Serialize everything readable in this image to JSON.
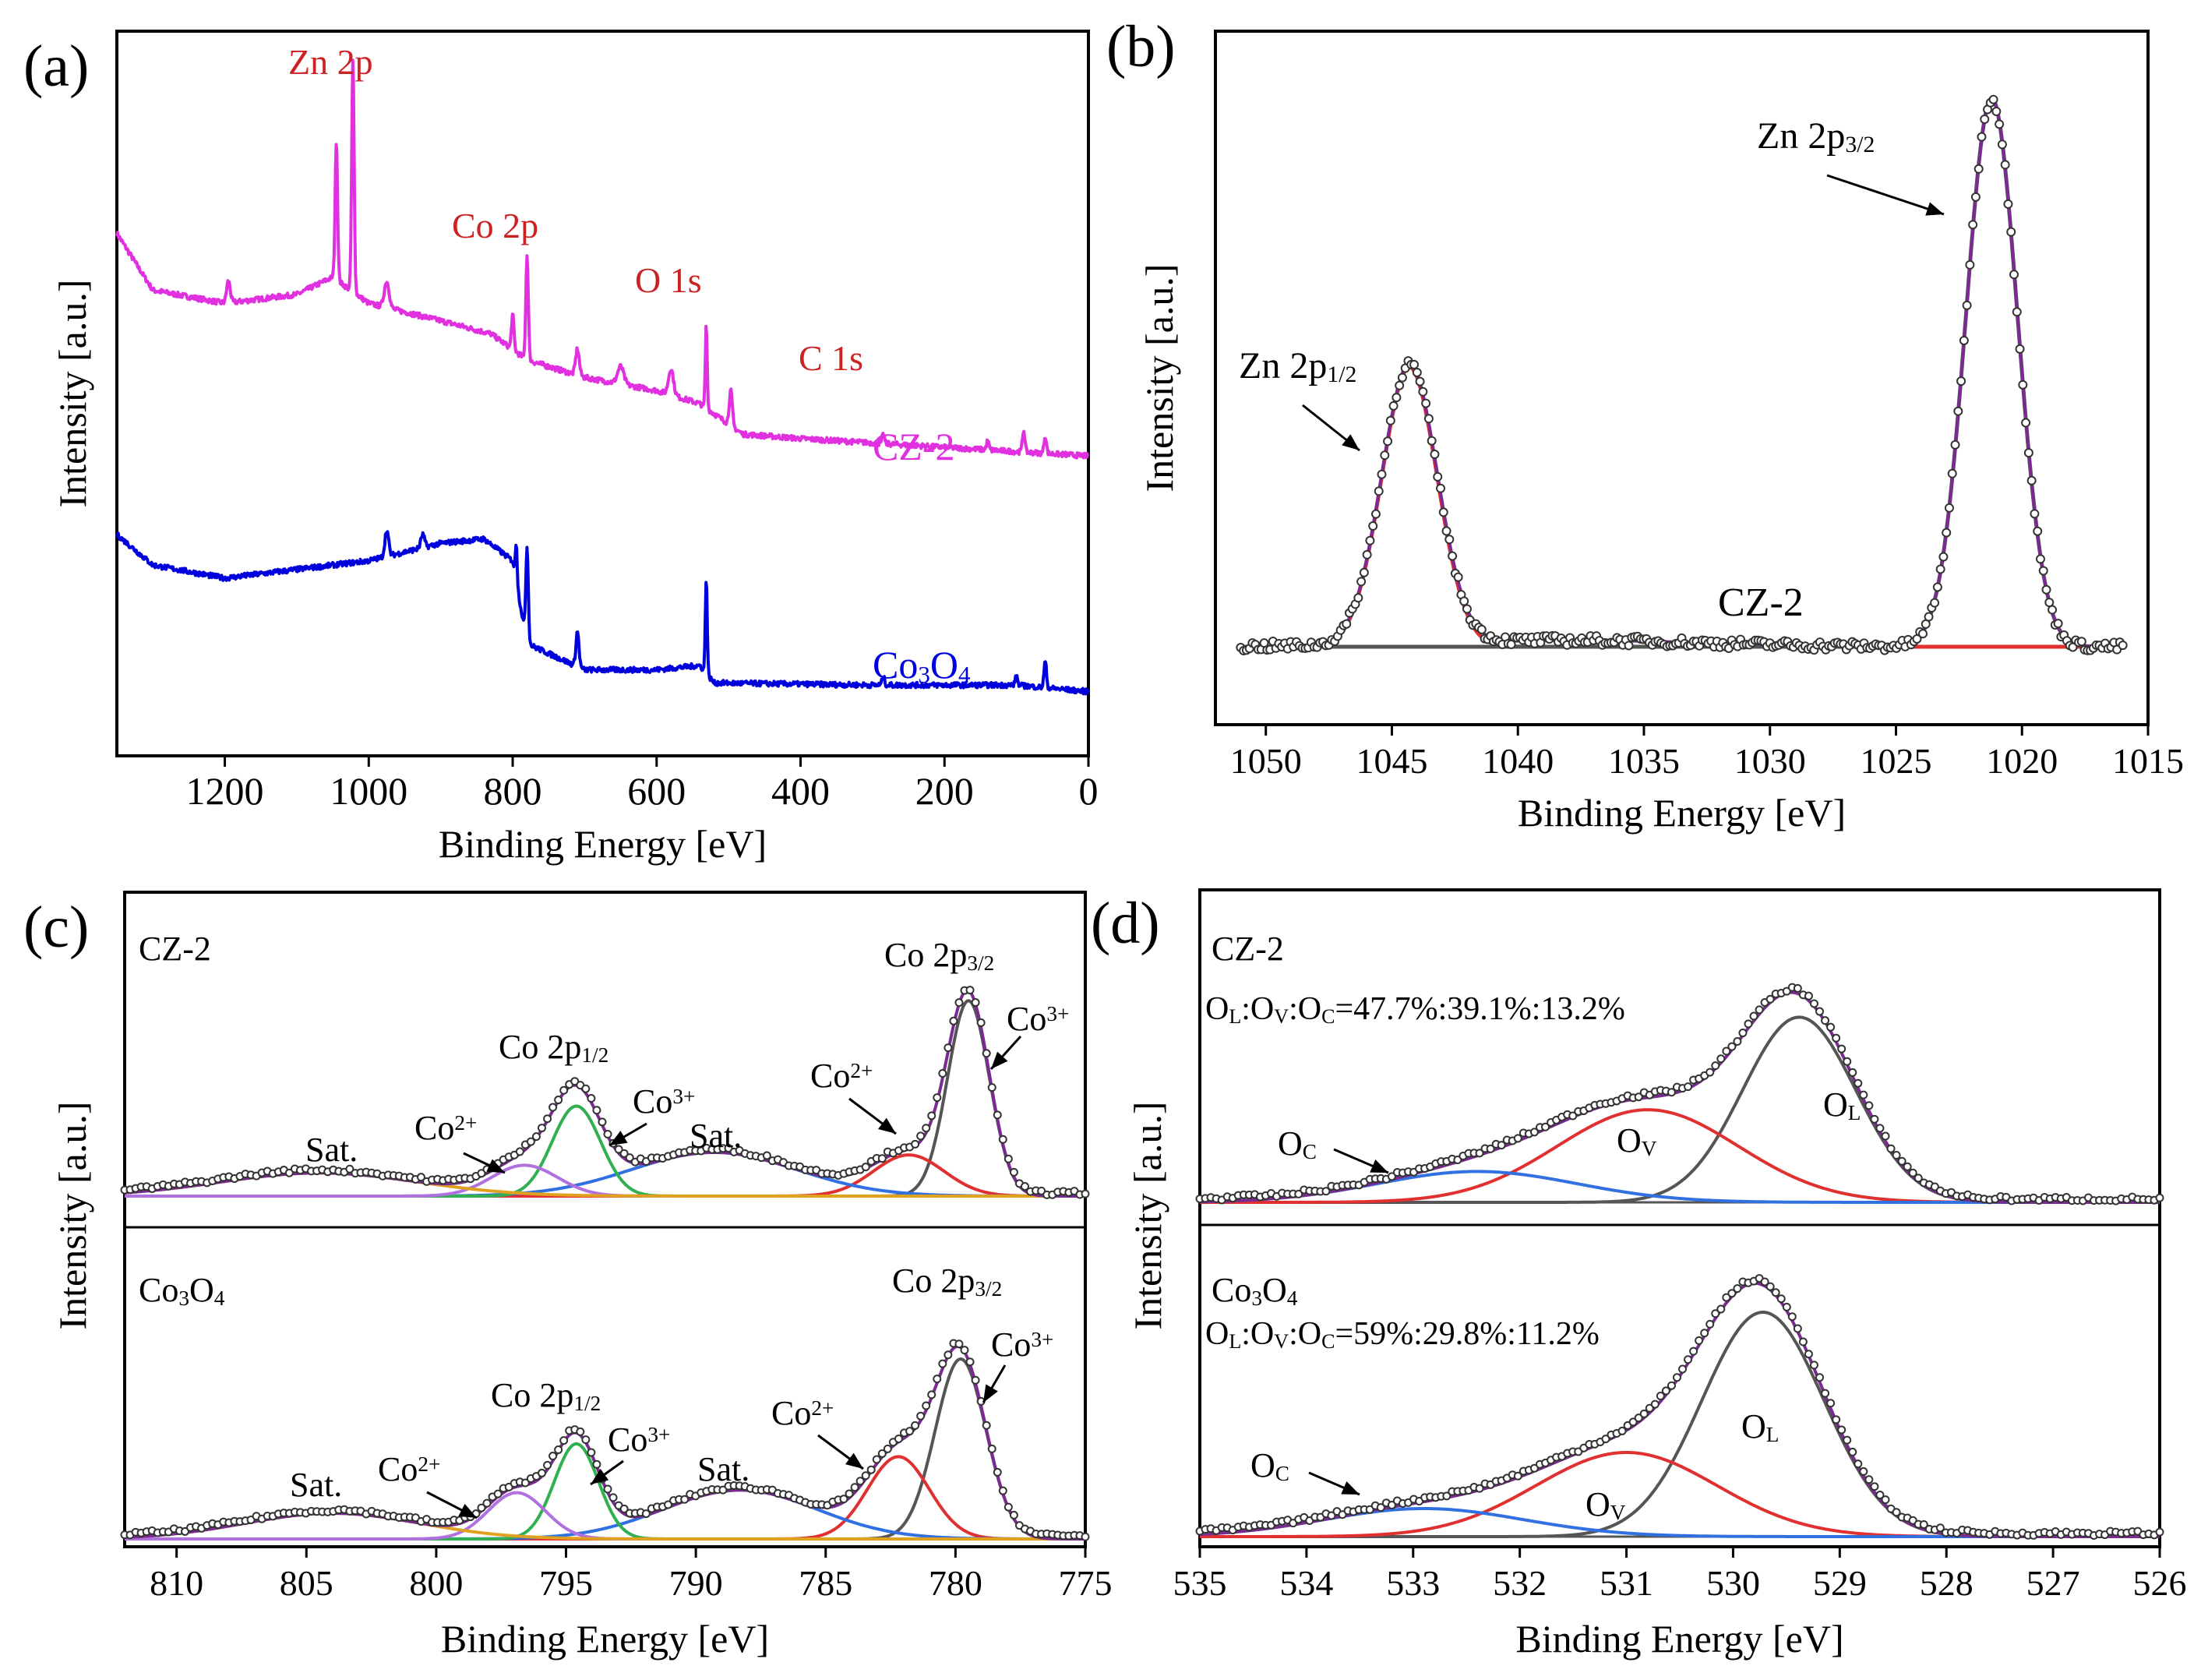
{
  "figure": {
    "colors": {
      "pink": "#e030e0",
      "blue": "#0000dd",
      "red": "#e03030",
      "dark": "#555555",
      "green": "#30b050",
      "violet": "#b070e0",
      "skyblue": "#3070e0",
      "orange": "#e0a020",
      "purple": "#7a2a90",
      "annot": "#cc2222"
    }
  },
  "chart_data": [
    {
      "id": "a",
      "type": "line",
      "panel_label": "(a)",
      "xlabel": "Binding Energy [eV]",
      "ylabel": "Intensity [a.u.]",
      "xlim": [
        1350,
        0
      ],
      "x_ticks": [
        1200,
        1000,
        800,
        600,
        400,
        200,
        0
      ],
      "annotations": [
        "Zn 2p",
        "Co 2p",
        "O 1s",
        "C 1s"
      ],
      "series": [
        {
          "name": "CZ-2",
          "color_key": "pink",
          "offset": 5.4,
          "background": [
            [
              1350,
              5.5
            ],
            [
              1300,
              4.2
            ],
            [
              1200,
              3.9
            ],
            [
              1100,
              4.1
            ],
            [
              1050,
              4.5
            ],
            [
              1000,
              3.9
            ],
            [
              900,
              3.5
            ],
            [
              830,
              3.2
            ],
            [
              780,
              2.6
            ],
            [
              700,
              2.2
            ],
            [
              600,
              1.9
            ],
            [
              540,
              1.6
            ],
            [
              480,
              0.9
            ],
            [
              400,
              0.8
            ],
            [
              200,
              0.6
            ],
            [
              0,
              0.4
            ]
          ],
          "peaks": [
            [
              1045,
              3.2,
              4
            ],
            [
              1022,
              5.3,
              4
            ],
            [
              975,
              0.6,
              8
            ],
            [
              1195,
              0.5,
              6
            ],
            [
              800,
              0.8,
              4
            ],
            [
              780,
              2.4,
              4
            ],
            [
              710,
              0.6,
              6
            ],
            [
              650,
              0.4,
              10
            ],
            [
              580,
              0.6,
              8
            ],
            [
              531,
              1.9,
              3
            ],
            [
              497,
              0.8,
              5
            ],
            [
              285,
              0.2,
              4
            ],
            [
              140,
              0.2,
              4
            ],
            [
              90,
              0.5,
              4
            ],
            [
              60,
              0.4,
              4
            ]
          ]
        },
        {
          "name": "Co3O4",
          "color_key": "blue",
          "offset": 0.4,
          "background": [
            [
              1350,
              3.6
            ],
            [
              1300,
              2.9
            ],
            [
              1200,
              2.6
            ],
            [
              1000,
              3.0
            ],
            [
              900,
              3.4
            ],
            [
              840,
              3.5
            ],
            [
              800,
              3.0
            ],
            [
              780,
              1.1
            ],
            [
              700,
              0.5
            ],
            [
              600,
              0.5
            ],
            [
              540,
              0.6
            ],
            [
              520,
              0.2
            ],
            [
              300,
              0.15
            ],
            [
              100,
              0.15
            ],
            [
              0,
              0.0
            ]
          ],
          "peaks": [
            [
              975,
              0.6,
              6
            ],
            [
              925,
              0.3,
              6
            ],
            [
              795,
              0.9,
              3
            ],
            [
              780,
              2.2,
              4
            ],
            [
              710,
              0.8,
              5
            ],
            [
              531,
              2.2,
              3
            ],
            [
              285,
              0.2,
              4
            ],
            [
              100,
              0.2,
              4
            ],
            [
              60,
              0.6,
              4
            ]
          ]
        }
      ]
    },
    {
      "id": "b",
      "type": "line",
      "panel_label": "(b)",
      "xlabel": "Binding Energy [eV]",
      "ylabel": "Intensity [a.u.]",
      "xlim": [
        1052,
        1015
      ],
      "x_ticks": [
        1050,
        1045,
        1040,
        1035,
        1030,
        1025,
        1020,
        1015
      ],
      "sample_label": "CZ-2",
      "annotations": [
        "Zn 2p",
        "1/2",
        "Zn 2p",
        "3/2"
      ],
      "components": [
        {
          "name": "Zn 2p1/2",
          "center": 1044.3,
          "height": 5.2,
          "fwhm": 2.6,
          "color_key": "red"
        },
        {
          "name": "Zn 2p3/2",
          "center": 1021.2,
          "height": 10.2,
          "fwhm": 2.4,
          "color_key": "dark"
        }
      ],
      "baseline": 0.0,
      "raw_extra": [
        [
          1048,
          0.12
        ],
        [
          1035,
          0.18
        ],
        [
          1025,
          0.1
        ]
      ]
    },
    {
      "id": "c",
      "type": "line",
      "panel_label": "(c)",
      "xlabel": "Binding Energy [eV]",
      "ylabel": "Intensity [a.u.]",
      "xlim": [
        812,
        775
      ],
      "x_ticks": [
        810,
        805,
        800,
        795,
        790,
        785,
        780,
        775
      ],
      "subpanels": [
        {
          "name": "CZ-2",
          "labels": [
            "Co 2p",
            "3/2",
            "Co",
            "3+",
            "Co",
            "2+",
            "Co 2p",
            "1/2",
            "Co",
            "3+",
            "Sat.",
            "Co",
            "2+",
            "Sat."
          ],
          "components": [
            {
              "name": "Co3+ 2p3/2",
              "center": 779.5,
              "height": 7.6,
              "fwhm": 1.9,
              "color_key": "dark"
            },
            {
              "name": "Co2+ 2p3/2",
              "center": 781.8,
              "height": 1.6,
              "fwhm": 3.2,
              "color_key": "red"
            },
            {
              "name": "Sat. 2p3/2",
              "center": 789.3,
              "height": 1.7,
              "fwhm": 7.5,
              "color_key": "skyblue"
            },
            {
              "name": "Co3+ 2p1/2",
              "center": 794.6,
              "height": 3.5,
              "fwhm": 2.2,
              "color_key": "green"
            },
            {
              "name": "Co2+ 2p1/2",
              "center": 796.6,
              "height": 1.2,
              "fwhm": 3.0,
              "color_key": "violet"
            },
            {
              "name": "Sat. 2p1/2",
              "center": 804.5,
              "height": 0.9,
              "fwhm": 9.0,
              "color_key": "orange"
            }
          ]
        },
        {
          "name": "Co3O4",
          "labels": [
            "Co 2p",
            "3/2",
            "Co",
            "3+",
            "Co",
            "2+",
            "Co 2p",
            "1/2",
            "Co",
            "3+",
            "Sat.",
            "Co",
            "2+",
            "Sat."
          ],
          "components": [
            {
              "name": "Co3+ 2p3/2",
              "center": 779.8,
              "height": 7.0,
              "fwhm": 2.3,
              "color_key": "dark"
            },
            {
              "name": "Co2+ 2p3/2",
              "center": 782.2,
              "height": 3.2,
              "fwhm": 2.8,
              "color_key": "red"
            },
            {
              "name": "Sat. 2p3/2",
              "center": 788.3,
              "height": 1.9,
              "fwhm": 7.0,
              "color_key": "skyblue"
            },
            {
              "name": "Co3+ 2p1/2",
              "center": 794.6,
              "height": 3.7,
              "fwhm": 2.0,
              "color_key": "green"
            },
            {
              "name": "Co2+ 2p1/2",
              "center": 796.9,
              "height": 1.8,
              "fwhm": 2.6,
              "color_key": "violet"
            },
            {
              "name": "Sat. 2p1/2",
              "center": 804.0,
              "height": 1.0,
              "fwhm": 8.0,
              "color_key": "orange"
            }
          ]
        }
      ]
    },
    {
      "id": "d",
      "type": "line",
      "panel_label": "(d)",
      "xlabel": "Binding Energy [eV]",
      "ylabel": "Intensity [a.u.]",
      "xlim": [
        535,
        526
      ],
      "x_ticks": [
        535,
        534,
        533,
        532,
        531,
        530,
        529,
        528,
        527,
        526
      ],
      "subpanels": [
        {
          "name": "CZ-2",
          "ratio_parts": [
            "O",
            "L",
            ":O",
            "V",
            ":O",
            "C",
            "=47.7%:39.1%:13.2%"
          ],
          "labels": [
            "O",
            "L",
            "O",
            "V",
            "O",
            "C"
          ],
          "components": [
            {
              "name": "O_L",
              "center": 529.38,
              "height": 6.6,
              "fwhm": 1.25,
              "color_key": "dark"
            },
            {
              "name": "O_V",
              "center": 530.8,
              "height": 3.3,
              "fwhm": 2.0,
              "color_key": "red"
            },
            {
              "name": "O_C",
              "center": 532.4,
              "height": 1.1,
              "fwhm": 2.2,
              "color_key": "skyblue"
            }
          ]
        },
        {
          "name": "Co3O4",
          "ratio_parts": [
            "O",
            "L",
            ":O",
            "V",
            ":O",
            "C",
            "=59%:29.8%:11.2%"
          ],
          "labels": [
            "O",
            "L",
            "O",
            "V",
            "O",
            "C"
          ],
          "components": [
            {
              "name": "O_L",
              "center": 529.72,
              "height": 8.0,
              "fwhm": 1.35,
              "color_key": "dark"
            },
            {
              "name": "O_V",
              "center": 531.0,
              "height": 3.0,
              "fwhm": 2.0,
              "color_key": "red"
            },
            {
              "name": "O_C",
              "center": 532.9,
              "height": 1.0,
              "fwhm": 2.2,
              "color_key": "skyblue"
            }
          ]
        }
      ]
    }
  ]
}
